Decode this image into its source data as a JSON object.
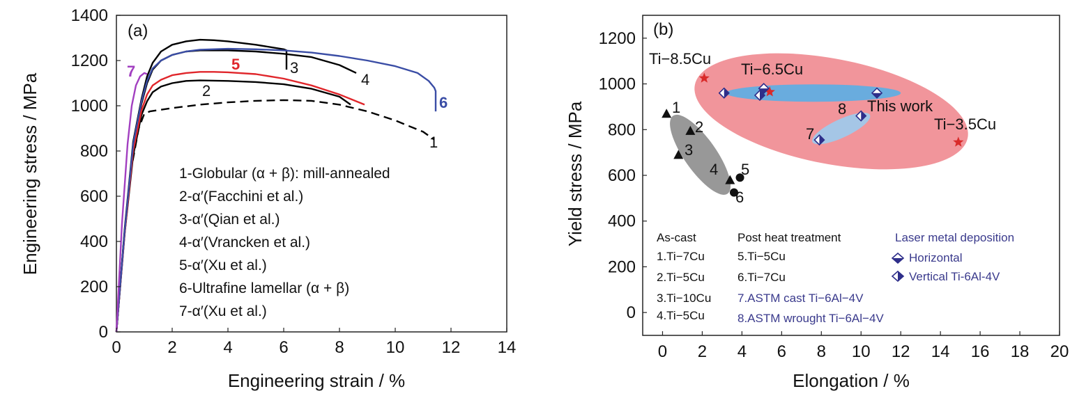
{
  "chart_data": [
    {
      "type": "line",
      "panel_label": "(a)",
      "xlabel": "Engineering strain / %",
      "ylabel": "Engineering stress / MPa",
      "xlim": [
        0,
        14
      ],
      "ylim": [
        0,
        1400
      ],
      "xticks": [
        "0",
        "2",
        "4",
        "6",
        "8",
        "10",
        "12",
        "14"
      ],
      "yticks": [
        "0",
        "200",
        "400",
        "600",
        "800",
        "1000",
        "1200",
        "1400"
      ],
      "grid": false,
      "legend": [
        "1-Globular (α + β): mill-annealed",
        "2-α′(Facchini et al.)",
        "3-α′(Qian et al.)",
        "4-α′(Vrancken et al.)",
        "5-α′(Xu et al.)",
        "6-Ultrafine lamellar (α + β)",
        "7-α′(Xu et al.)"
      ],
      "series": [
        {
          "label": "1",
          "color": "#000000",
          "style": "dashed",
          "x": [
            0,
            0.25,
            0.5,
            0.8,
            1.0,
            1.2,
            2,
            3,
            4,
            5,
            6,
            7,
            8,
            9,
            10,
            10.5,
            11,
            11.4
          ],
          "y": [
            0,
            380,
            700,
            900,
            965,
            975,
            990,
            1005,
            1015,
            1022,
            1025,
            1022,
            1005,
            975,
            935,
            910,
            885,
            850
          ]
        },
        {
          "label": "2",
          "color": "#000000",
          "style": "solid",
          "x": [
            0,
            0.3,
            0.6,
            0.9,
            1.1,
            1.3,
            1.6,
            2,
            2.5,
            3,
            4,
            5,
            6,
            7,
            8,
            8.4
          ],
          "y": [
            0,
            440,
            780,
            960,
            1020,
            1060,
            1085,
            1100,
            1110,
            1112,
            1110,
            1105,
            1095,
            1075,
            1040,
            1005
          ]
        },
        {
          "label": "3",
          "color": "#000000",
          "style": "solid",
          "x": [
            0,
            0.3,
            0.6,
            0.9,
            1.1,
            1.3,
            1.6,
            2,
            2.5,
            3,
            3.5,
            4,
            5,
            6,
            6.1,
            6.1
          ],
          "y": [
            0,
            460,
            840,
            1030,
            1130,
            1190,
            1240,
            1270,
            1285,
            1292,
            1290,
            1285,
            1270,
            1250,
            1245,
            1160
          ]
        },
        {
          "label": "4",
          "color": "#000000",
          "style": "solid",
          "x": [
            0,
            0.3,
            0.6,
            0.9,
            1.1,
            1.3,
            1.6,
            2,
            2.5,
            3,
            4,
            5,
            6,
            7,
            8,
            8.6
          ],
          "y": [
            0,
            450,
            820,
            1010,
            1100,
            1160,
            1200,
            1225,
            1240,
            1245,
            1245,
            1240,
            1230,
            1215,
            1180,
            1145
          ]
        },
        {
          "label": "5",
          "color": "#e0262b",
          "style": "solid",
          "x": [
            0,
            0.3,
            0.6,
            0.9,
            1.1,
            1.3,
            1.6,
            2,
            2.5,
            3,
            3.5,
            4,
            5,
            6,
            7,
            8,
            8.9
          ],
          "y": [
            0,
            440,
            800,
            980,
            1050,
            1090,
            1115,
            1135,
            1145,
            1150,
            1150,
            1148,
            1140,
            1120,
            1090,
            1050,
            1005
          ]
        },
        {
          "label": "6",
          "color": "#3a4da5",
          "style": "solid",
          "x": [
            0,
            0.3,
            0.6,
            0.9,
            1.1,
            1.3,
            1.6,
            2,
            2.5,
            3,
            4,
            5,
            6,
            7,
            8,
            9,
            10,
            10.8,
            11.2,
            11.4,
            11.45,
            11.45
          ],
          "y": [
            0,
            450,
            830,
            1020,
            1110,
            1165,
            1200,
            1225,
            1240,
            1248,
            1252,
            1250,
            1245,
            1235,
            1220,
            1200,
            1175,
            1145,
            1110,
            1080,
            1065,
            975
          ]
        },
        {
          "label": "7",
          "color": "#a23fc0",
          "style": "solid",
          "x": [
            0,
            0.2,
            0.4,
            0.55,
            0.7,
            0.85,
            1.0,
            1.1
          ],
          "y": [
            0,
            480,
            830,
            1000,
            1090,
            1130,
            1145,
            1140
          ]
        }
      ]
    },
    {
      "type": "scatter",
      "panel_label": "(b)",
      "xlabel": "Elongation / %",
      "ylabel": "Yield stress / MPa",
      "xlim": [
        -1,
        20
      ],
      "ylim": [
        -100,
        1300
      ],
      "xticks": [
        "0",
        "2",
        "4",
        "6",
        "8",
        "10",
        "12",
        "14",
        "16",
        "18",
        "20"
      ],
      "yticks": [
        "0",
        "200",
        "400",
        "600",
        "800",
        "1000",
        "1200"
      ],
      "grid": false,
      "regions": [
        {
          "name": "This work",
          "color": "#f08a90",
          "cx": 8.5,
          "cy": 880,
          "rx_data": 7.0,
          "ry_data": 230,
          "rotate_deg": 11
        },
        {
          "name": "",
          "color": "#5aaee6",
          "cx": 7.6,
          "cy": 960,
          "rx_data": 4.4,
          "ry_data": 38,
          "rotate_deg": 0
        },
        {
          "name": "",
          "color": "#9ccbee",
          "cx": 9.0,
          "cy": 805,
          "rx_data": 1.6,
          "ry_data": 40,
          "rotate_deg": -25
        },
        {
          "name": "",
          "color": "#8d8d8d",
          "cx": 1.9,
          "cy": 690,
          "rx_data": 2.4,
          "ry_data": 70,
          "rotate_deg": 55
        }
      ],
      "region_label": "This work",
      "series": [
        {
          "name": "As-cast",
          "marker": "triangle",
          "color": "#111111",
          "points": [
            {
              "label": "1",
              "x": 0.2,
              "y": 870
            },
            {
              "label": "2",
              "x": 1.4,
              "y": 795
            },
            {
              "label": "3",
              "x": 0.8,
              "y": 690
            },
            {
              "label": "4",
              "x": 3.4,
              "y": 580
            }
          ]
        },
        {
          "name": "Post heat treatment",
          "marker": "circle",
          "color": "#111111",
          "points": [
            {
              "label": "5",
              "x": 3.9,
              "y": 590
            },
            {
              "label": "6",
              "x": 3.6,
              "y": 525
            }
          ]
        },
        {
          "name": "",
          "marker": "star",
          "color": "#d92a2a",
          "points": [
            {
              "label": "Ti−8.5Cu",
              "x": 2.1,
              "y": 1025
            },
            {
              "label": "Ti−6.5Cu",
              "x": 5.4,
              "y": 965
            },
            {
              "label": "Ti−3.5Cu",
              "x": 14.9,
              "y": 745
            }
          ]
        },
        {
          "name": "Horizontal",
          "marker": "diamond-h",
          "color": "#2e2e8a",
          "points": [
            {
              "label": "",
              "x": 5.1,
              "y": 980
            },
            {
              "label": "",
              "x": 10.8,
              "y": 960
            }
          ]
        },
        {
          "name": "Vertical Ti-6Al-4V",
          "marker": "diamond-v",
          "color": "#2e2e8a",
          "points": [
            {
              "label": "",
              "x": 3.1,
              "y": 960
            },
            {
              "label": "",
              "x": 4.9,
              "y": 950
            },
            {
              "label": "8",
              "x": 10.0,
              "y": 860
            },
            {
              "label": "7",
              "x": 7.9,
              "y": 755
            }
          ]
        }
      ],
      "legend_columns": [
        {
          "title": "As-cast",
          "items": [
            "1.Ti−7Cu",
            "2.Ti−5Cu",
            "3.Ti−10Cu",
            "4.Ti−5Cu"
          ]
        },
        {
          "title": "Post heat treatment",
          "items": [
            "5.Ti−5Cu",
            "6.Ti−7Cu",
            "7.ASTM cast Ti−6Al−4V",
            "8.ASTM wrought Ti−6Al−4V"
          ]
        },
        {
          "title": "Laser metal deposition",
          "items": [
            "Horizontal",
            "Vertical Ti-6Al-4V"
          ]
        }
      ]
    }
  ]
}
